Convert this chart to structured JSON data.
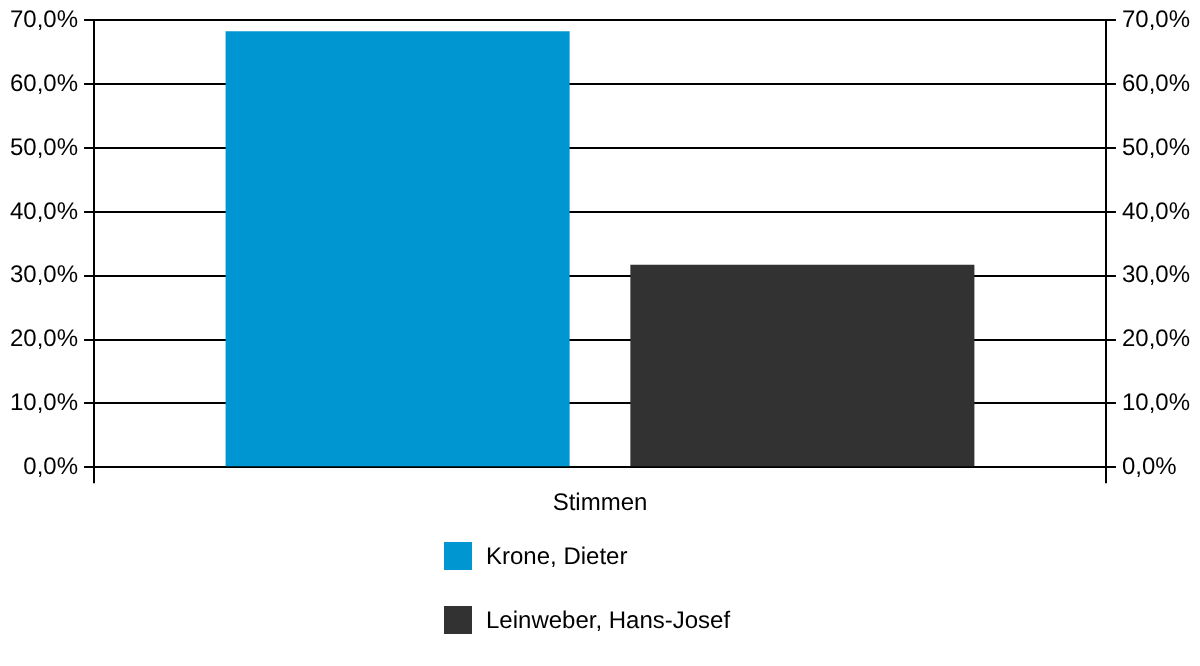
{
  "chart_data": {
    "type": "bar",
    "categories": [
      "Stimmen"
    ],
    "series": [
      {
        "name": "Krone, Dieter",
        "color": "#0096d2",
        "values": [
          68.3
        ]
      },
      {
        "name": "Leinweber, Hans-Josef",
        "color": "#323232",
        "values": [
          31.7
        ]
      }
    ],
    "ylim": [
      0,
      70
    ],
    "yticks": [
      {
        "value": 0,
        "label": "0,0%"
      },
      {
        "value": 10,
        "label": "10,0%"
      },
      {
        "value": 20,
        "label": "20,0%"
      },
      {
        "value": 30,
        "label": "30,0%"
      },
      {
        "value": 40,
        "label": "40,0%"
      },
      {
        "value": 50,
        "label": "50,0%"
      },
      {
        "value": 60,
        "label": "60,0%"
      },
      {
        "value": 70,
        "label": "70,0%"
      }
    ],
    "grid": "y",
    "legend": "bottom"
  }
}
